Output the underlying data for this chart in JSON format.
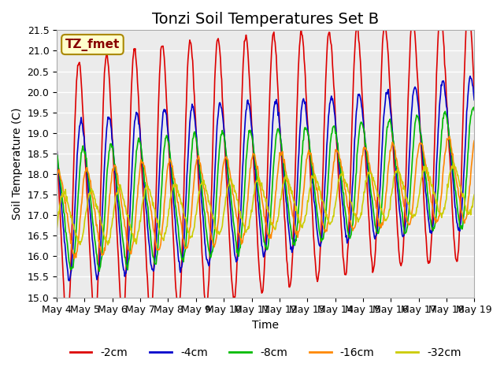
{
  "title": "Tonzi Soil Temperatures Set B",
  "xlabel": "Time",
  "ylabel": "Soil Temperature (C)",
  "ylim": [
    15.0,
    21.5
  ],
  "yticks": [
    15.0,
    15.5,
    16.0,
    16.5,
    17.0,
    17.5,
    18.0,
    18.5,
    19.0,
    19.5,
    20.0,
    20.5,
    21.0,
    21.5
  ],
  "xtick_labels": [
    "May 4",
    "May 5",
    "May 6",
    "May 7",
    "May 8",
    "May 9",
    "May 10",
    "May 11",
    "May 12",
    "May 13",
    "May 14",
    "May 15",
    "May 16",
    "May 17",
    "May 18",
    "May 19"
  ],
  "n_days": 15,
  "points_per_day": 48,
  "series": [
    {
      "label": "-2cm",
      "color": "#dd0000",
      "amplitude": 3.0,
      "phase_shift": 0.0,
      "mean_base": 17.5,
      "mean_slope": 0.1
    },
    {
      "label": "-4cm",
      "color": "#0000cc",
      "amplitude": 1.8,
      "phase_shift": 0.08,
      "mean_base": 17.3,
      "mean_slope": 0.08
    },
    {
      "label": "-8cm",
      "color": "#00bb00",
      "amplitude": 1.4,
      "phase_shift": 0.16,
      "mean_base": 17.1,
      "mean_slope": 0.07
    },
    {
      "label": "-16cm",
      "color": "#ff8800",
      "amplitude": 1.0,
      "phase_shift": 0.28,
      "mean_base": 17.0,
      "mean_slope": 0.06
    },
    {
      "label": "-32cm",
      "color": "#cccc00",
      "amplitude": 0.6,
      "phase_shift": 0.45,
      "mean_base": 16.9,
      "mean_slope": 0.05
    }
  ],
  "annot_label": "TZ_fmet",
  "annot_box_color": "#ffffcc",
  "annot_box_edge": "#aa8800",
  "annot_text_color": "#880000",
  "plot_bg": "#ebebeb",
  "fig_bg": "#ffffff",
  "grid_color": "#ffffff",
  "title_fontsize": 14,
  "axis_label_fontsize": 10,
  "tick_fontsize": 9,
  "legend_fontsize": 10
}
